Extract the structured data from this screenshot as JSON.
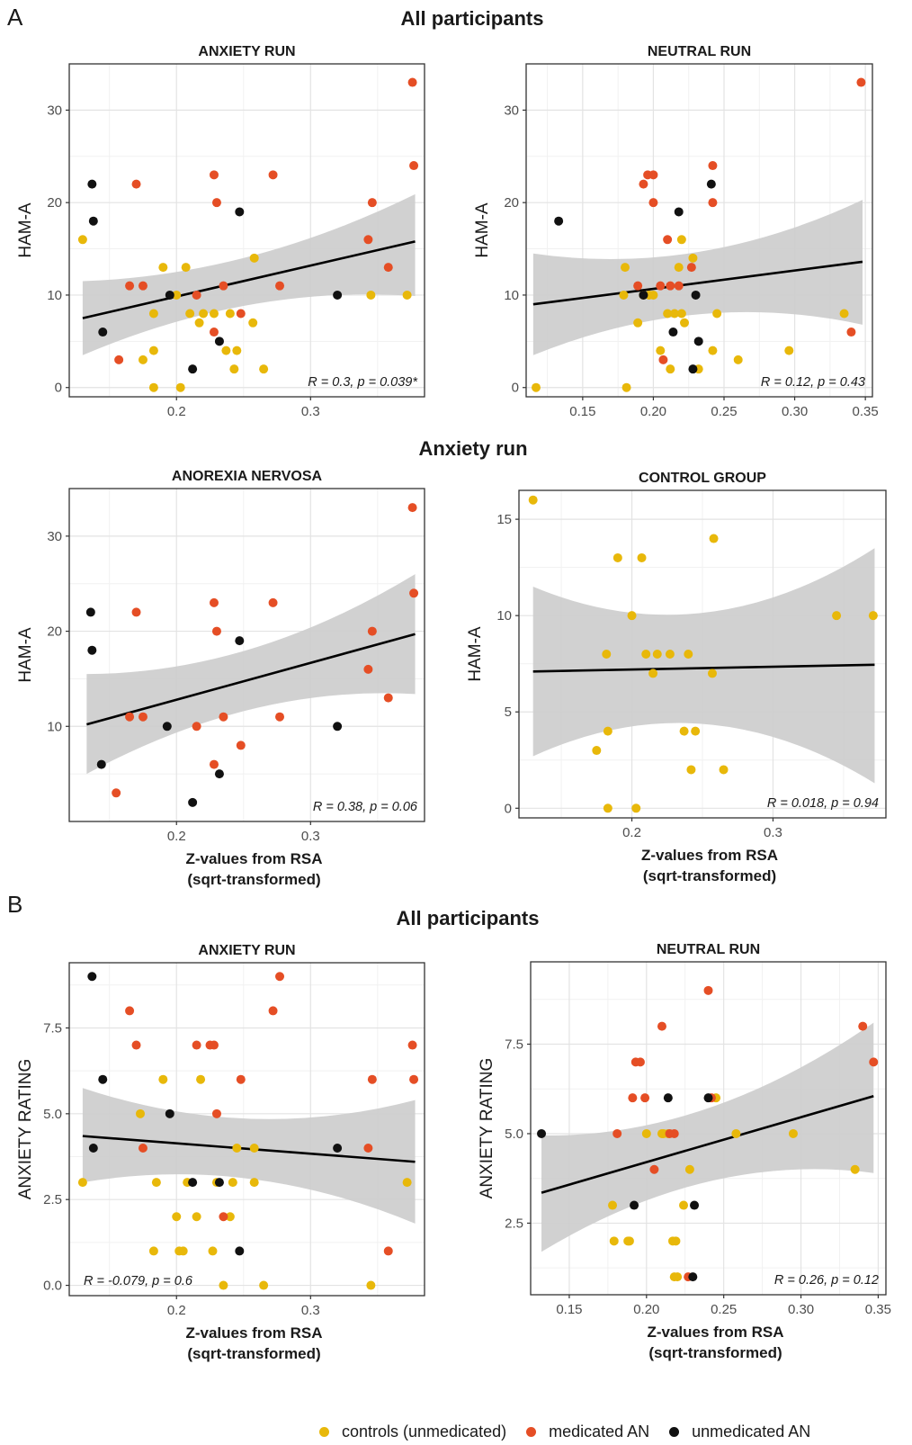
{
  "colors": {
    "controls": "#E8B80A",
    "medicated": "#E54E25",
    "unmedicated": "#111111",
    "band": "#CCCCCC",
    "grid_major": "#E3E3E3",
    "grid_minor": "#F1F1F1"
  },
  "panel_labels": {
    "a": "A",
    "b": "B"
  },
  "section_titles": {
    "a_top": "All participants",
    "a_mid": "Anxiety run",
    "b_top": "All participants"
  },
  "legend": {
    "controls": "controls (unmedicated)",
    "medicated": "medicated AN",
    "unmedicated": "unmedicated AN"
  },
  "chart_data": [
    {
      "id": "a_anxiety",
      "type": "scatter",
      "title": "ANXIETY RUN",
      "ylabel": "HAM-A",
      "xlabel": [
        "",
        ""
      ],
      "xlim": [
        0.12,
        0.385
      ],
      "ylim": [
        -1,
        35
      ],
      "xticks": [
        0.2,
        0.3
      ],
      "xtick_labels": [
        "0.2",
        "0.3"
      ],
      "yticks": [
        0,
        10,
        20,
        30
      ],
      "ytick_labels": [
        "0",
        "10",
        "20",
        "30"
      ],
      "grid": true,
      "fit": {
        "x": [
          0.13,
          0.378
        ],
        "y": [
          7.5,
          15.8
        ],
        "ci_lo": [
          3.5,
          9.9
        ],
        "ci_hi": [
          11.5,
          20.9
        ]
      },
      "annotation": "R = 0.3, p = 0.039*",
      "annotation_pos": "bottom-right",
      "points": {
        "controls": [
          [
            0.13,
            16
          ],
          [
            0.183,
            4
          ],
          [
            0.183,
            8
          ],
          [
            0.19,
            13
          ],
          [
            0.183,
            0
          ],
          [
            0.175,
            3
          ],
          [
            0.2,
            10
          ],
          [
            0.203,
            0
          ],
          [
            0.207,
            13
          ],
          [
            0.21,
            8
          ],
          [
            0.217,
            7
          ],
          [
            0.22,
            8
          ],
          [
            0.228,
            8
          ],
          [
            0.237,
            4
          ],
          [
            0.24,
            8
          ],
          [
            0.243,
            2
          ],
          [
            0.245,
            4
          ],
          [
            0.258,
            14
          ],
          [
            0.257,
            7
          ],
          [
            0.265,
            2
          ],
          [
            0.345,
            10
          ],
          [
            0.372,
            10
          ]
        ],
        "medicated": [
          [
            0.157,
            3
          ],
          [
            0.165,
            11
          ],
          [
            0.17,
            22
          ],
          [
            0.175,
            11
          ],
          [
            0.215,
            10
          ],
          [
            0.228,
            6
          ],
          [
            0.228,
            23
          ],
          [
            0.23,
            20
          ],
          [
            0.235,
            11
          ],
          [
            0.248,
            8
          ],
          [
            0.272,
            23
          ],
          [
            0.277,
            11
          ],
          [
            0.343,
            16
          ],
          [
            0.346,
            20
          ],
          [
            0.358,
            13
          ],
          [
            0.376,
            33
          ],
          [
            0.377,
            24
          ]
        ],
        "unmedicated": [
          [
            0.137,
            22
          ],
          [
            0.138,
            18
          ],
          [
            0.145,
            6
          ],
          [
            0.195,
            10
          ],
          [
            0.212,
            2
          ],
          [
            0.232,
            5
          ],
          [
            0.247,
            19
          ],
          [
            0.32,
            10
          ]
        ]
      }
    },
    {
      "id": "a_neutral",
      "type": "scatter",
      "title": "NEUTRAL RUN",
      "ylabel": "HAM-A",
      "xlabel": [
        "",
        ""
      ],
      "xlim": [
        0.11,
        0.355
      ],
      "ylim": [
        -1,
        35
      ],
      "xticks": [
        0.15,
        0.2,
        0.25,
        0.3,
        0.35
      ],
      "xtick_labels": [
        "0.15",
        "0.20",
        "0.25",
        "0.30",
        "0.35"
      ],
      "yticks": [
        0,
        10,
        20,
        30
      ],
      "ytick_labels": [
        "0",
        "10",
        "20",
        "30"
      ],
      "grid": true,
      "fit": {
        "x": [
          0.115,
          0.348
        ],
        "y": [
          9,
          13.6
        ],
        "ci_lo": [
          3.5,
          6.8
        ],
        "ci_hi": [
          14.5,
          20.3
        ]
      },
      "annotation": "R = 0.12, p = 0.43",
      "annotation_pos": "bottom-right",
      "points": {
        "controls": [
          [
            0.117,
            0
          ],
          [
            0.179,
            10
          ],
          [
            0.18,
            13
          ],
          [
            0.181,
            0
          ],
          [
            0.189,
            7
          ],
          [
            0.193,
            10
          ],
          [
            0.197,
            10
          ],
          [
            0.2,
            10
          ],
          [
            0.205,
            4
          ],
          [
            0.21,
            8
          ],
          [
            0.212,
            2
          ],
          [
            0.215,
            8
          ],
          [
            0.218,
            13
          ],
          [
            0.22,
            16
          ],
          [
            0.22,
            8
          ],
          [
            0.222,
            7
          ],
          [
            0.228,
            14
          ],
          [
            0.232,
            2
          ],
          [
            0.242,
            4
          ],
          [
            0.245,
            8
          ],
          [
            0.26,
            3
          ],
          [
            0.296,
            4
          ],
          [
            0.335,
            8
          ]
        ],
        "medicated": [
          [
            0.189,
            11
          ],
          [
            0.193,
            22
          ],
          [
            0.196,
            23
          ],
          [
            0.2,
            23
          ],
          [
            0.2,
            20
          ],
          [
            0.205,
            11
          ],
          [
            0.207,
            3
          ],
          [
            0.21,
            16
          ],
          [
            0.212,
            11
          ],
          [
            0.218,
            11
          ],
          [
            0.227,
            13
          ],
          [
            0.242,
            20
          ],
          [
            0.242,
            24
          ],
          [
            0.34,
            6
          ],
          [
            0.347,
            33
          ]
        ],
        "unmedicated": [
          [
            0.133,
            18
          ],
          [
            0.193,
            10
          ],
          [
            0.214,
            6
          ],
          [
            0.218,
            19
          ],
          [
            0.228,
            2
          ],
          [
            0.23,
            10
          ],
          [
            0.232,
            5
          ],
          [
            0.241,
            22
          ]
        ]
      }
    },
    {
      "id": "a_an",
      "type": "scatter",
      "title": "ANOREXIA NERVOSA",
      "ylabel": "HAM-A",
      "xlabel": [
        "Z-values from RSA",
        "(sqrt-transformed)"
      ],
      "xlim": [
        0.12,
        0.385
      ],
      "ylim": [
        0,
        35
      ],
      "xticks": [
        0.2,
        0.3
      ],
      "xtick_labels": [
        "0.2",
        "0.3"
      ],
      "yticks": [
        10,
        20,
        30
      ],
      "ytick_labels": [
        "10",
        "20",
        "30"
      ],
      "grid": true,
      "fit": {
        "x": [
          0.133,
          0.378
        ],
        "y": [
          10.2,
          19.7
        ],
        "ci_lo": [
          5,
          13.4
        ],
        "ci_hi": [
          15.5,
          26
        ]
      },
      "annotation": "R = 0.38, p = 0.06",
      "annotation_pos": "bottom-right",
      "points": {
        "controls": [],
        "medicated": [
          [
            0.155,
            3
          ],
          [
            0.165,
            11
          ],
          [
            0.17,
            22
          ],
          [
            0.175,
            11
          ],
          [
            0.215,
            10
          ],
          [
            0.228,
            6
          ],
          [
            0.228,
            23
          ],
          [
            0.23,
            20
          ],
          [
            0.235,
            11
          ],
          [
            0.248,
            8
          ],
          [
            0.272,
            23
          ],
          [
            0.277,
            11
          ],
          [
            0.343,
            16
          ],
          [
            0.346,
            20
          ],
          [
            0.358,
            13
          ],
          [
            0.376,
            33
          ],
          [
            0.377,
            24
          ]
        ],
        "unmedicated": [
          [
            0.136,
            22
          ],
          [
            0.137,
            18
          ],
          [
            0.144,
            6
          ],
          [
            0.193,
            10
          ],
          [
            0.212,
            2
          ],
          [
            0.232,
            5
          ],
          [
            0.247,
            19
          ],
          [
            0.32,
            10
          ]
        ]
      }
    },
    {
      "id": "a_control",
      "type": "scatter",
      "title": "CONTROL GROUP",
      "ylabel": "HAM-A",
      "xlabel": [
        "Z-values from RSA",
        "(sqrt-transformed)"
      ],
      "xlim": [
        0.12,
        0.38
      ],
      "ylim": [
        -0.5,
        16.5
      ],
      "xticks": [
        0.2,
        0.3
      ],
      "xtick_labels": [
        "0.2",
        "0.3"
      ],
      "yticks": [
        0,
        5,
        10,
        15
      ],
      "ytick_labels": [
        "0",
        "5",
        "10",
        "15"
      ],
      "grid": true,
      "fit": {
        "x": [
          0.13,
          0.372
        ],
        "y": [
          7.1,
          7.45
        ],
        "ci_lo": [
          2.7,
          1.3
        ],
        "ci_hi": [
          11.5,
          13.5
        ]
      },
      "annotation": "R = 0.018, p = 0.94",
      "annotation_pos": "bottom-right",
      "points": {
        "controls": [
          [
            0.13,
            16
          ],
          [
            0.175,
            3
          ],
          [
            0.182,
            8
          ],
          [
            0.183,
            4
          ],
          [
            0.183,
            0
          ],
          [
            0.19,
            13
          ],
          [
            0.2,
            10
          ],
          [
            0.203,
            0
          ],
          [
            0.207,
            13
          ],
          [
            0.21,
            8
          ],
          [
            0.215,
            7
          ],
          [
            0.218,
            8
          ],
          [
            0.227,
            8
          ],
          [
            0.237,
            4
          ],
          [
            0.24,
            8
          ],
          [
            0.242,
            2
          ],
          [
            0.245,
            4
          ],
          [
            0.257,
            7
          ],
          [
            0.258,
            14
          ],
          [
            0.265,
            2
          ],
          [
            0.345,
            10
          ],
          [
            0.371,
            10
          ]
        ],
        "medicated": [],
        "unmedicated": []
      }
    },
    {
      "id": "b_anxiety",
      "type": "scatter",
      "title": "ANXIETY RUN",
      "ylabel": "ANXIETY RATING",
      "xlabel": [
        "Z-values from RSA",
        "(sqrt-transformed)"
      ],
      "xlim": [
        0.12,
        0.385
      ],
      "ylim": [
        -0.3,
        9.4
      ],
      "xticks": [
        0.2,
        0.3
      ],
      "xtick_labels": [
        "0.2",
        "0.3"
      ],
      "yticks": [
        0,
        2.5,
        5,
        7.5
      ],
      "ytick_labels": [
        "0.0",
        "2.5",
        "5.0",
        "7.5"
      ],
      "grid": true,
      "fit": {
        "x": [
          0.13,
          0.378
        ],
        "y": [
          4.35,
          3.6
        ],
        "ci_lo": [
          3.0,
          1.8
        ],
        "ci_hi": [
          5.75,
          5.4
        ]
      },
      "annotation": "R = -0.079, p = 0.6",
      "annotation_pos": "bottom-left",
      "points": {
        "controls": [
          [
            0.13,
            3
          ],
          [
            0.173,
            5
          ],
          [
            0.183,
            1
          ],
          [
            0.185,
            3
          ],
          [
            0.19,
            6
          ],
          [
            0.2,
            2
          ],
          [
            0.202,
            1
          ],
          [
            0.205,
            1
          ],
          [
            0.208,
            3
          ],
          [
            0.215,
            2
          ],
          [
            0.218,
            6
          ],
          [
            0.227,
            1
          ],
          [
            0.23,
            3
          ],
          [
            0.235,
            0
          ],
          [
            0.24,
            2
          ],
          [
            0.242,
            3
          ],
          [
            0.245,
            4
          ],
          [
            0.258,
            3
          ],
          [
            0.258,
            4
          ],
          [
            0.265,
            0
          ],
          [
            0.345,
            0
          ],
          [
            0.372,
            3
          ]
        ],
        "medicated": [
          [
            0.165,
            8
          ],
          [
            0.17,
            7
          ],
          [
            0.175,
            4
          ],
          [
            0.215,
            7
          ],
          [
            0.225,
            7
          ],
          [
            0.228,
            7
          ],
          [
            0.23,
            5
          ],
          [
            0.235,
            2
          ],
          [
            0.248,
            6
          ],
          [
            0.272,
            8
          ],
          [
            0.277,
            9
          ],
          [
            0.343,
            4
          ],
          [
            0.346,
            6
          ],
          [
            0.358,
            1
          ],
          [
            0.376,
            7
          ],
          [
            0.377,
            6
          ]
        ],
        "unmedicated": [
          [
            0.137,
            9
          ],
          [
            0.138,
            4
          ],
          [
            0.145,
            6
          ],
          [
            0.195,
            5
          ],
          [
            0.212,
            3
          ],
          [
            0.232,
            3
          ],
          [
            0.247,
            1
          ],
          [
            0.32,
            4
          ]
        ]
      }
    },
    {
      "id": "b_neutral",
      "type": "scatter",
      "title": "NEUTRAL RUN",
      "ylabel": "ANXIETY RATING",
      "xlabel": [
        "Z-values from RSA",
        "(sqrt-transformed)"
      ],
      "xlim": [
        0.125,
        0.355
      ],
      "ylim": [
        0.5,
        9.8
      ],
      "xticks": [
        0.15,
        0.2,
        0.25,
        0.3,
        0.35
      ],
      "xtick_labels": [
        "0.15",
        "0.20",
        "0.25",
        "0.30",
        "0.35"
      ],
      "yticks": [
        2.5,
        5,
        7.5
      ],
      "ytick_labels": [
        "2.5",
        "5.0",
        "7.5"
      ],
      "grid": true,
      "fit": {
        "x": [
          0.132,
          0.347
        ],
        "y": [
          3.35,
          6.05
        ],
        "ci_lo": [
          1.7,
          3.9
        ],
        "ci_hi": [
          4.95,
          8.1
        ]
      },
      "annotation": "R = 0.26, p = 0.12",
      "annotation_pos": "bottom-right",
      "points": {
        "controls": [
          [
            0.178,
            3
          ],
          [
            0.179,
            2
          ],
          [
            0.188,
            2
          ],
          [
            0.189,
            2
          ],
          [
            0.2,
            5
          ],
          [
            0.21,
            5
          ],
          [
            0.211,
            5
          ],
          [
            0.214,
            5
          ],
          [
            0.217,
            2
          ],
          [
            0.218,
            1
          ],
          [
            0.219,
            2
          ],
          [
            0.22,
            1
          ],
          [
            0.224,
            3
          ],
          [
            0.228,
            4
          ],
          [
            0.245,
            6
          ],
          [
            0.258,
            5
          ],
          [
            0.295,
            5
          ],
          [
            0.335,
            4
          ]
        ],
        "medicated": [
          [
            0.181,
            5
          ],
          [
            0.191,
            6
          ],
          [
            0.193,
            7
          ],
          [
            0.196,
            7
          ],
          [
            0.199,
            6
          ],
          [
            0.205,
            4
          ],
          [
            0.21,
            8
          ],
          [
            0.215,
            5
          ],
          [
            0.218,
            5
          ],
          [
            0.227,
            1
          ],
          [
            0.24,
            9
          ],
          [
            0.242,
            6
          ],
          [
            0.34,
            8
          ],
          [
            0.347,
            7
          ]
        ],
        "unmedicated": [
          [
            0.132,
            5
          ],
          [
            0.192,
            3
          ],
          [
            0.214,
            6
          ],
          [
            0.23,
            1
          ],
          [
            0.231,
            3
          ],
          [
            0.24,
            6
          ]
        ]
      }
    }
  ]
}
